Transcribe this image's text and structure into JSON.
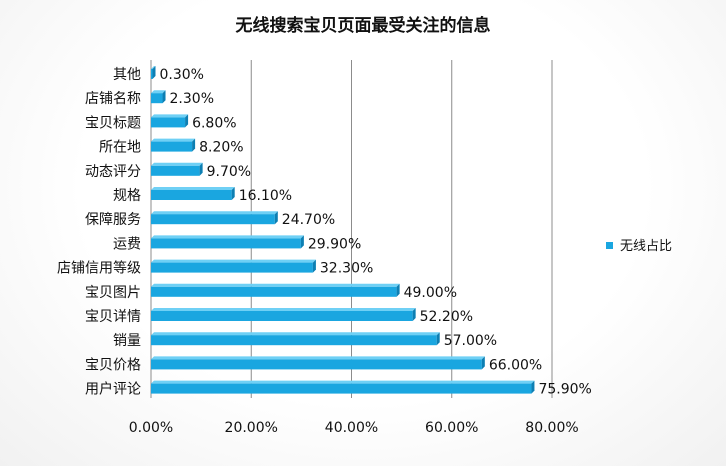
{
  "chart_data": {
    "type": "bar",
    "orientation": "horizontal",
    "title": "无线搜索宝贝页面最受关注的信息",
    "categories": [
      "其他",
      "店铺名称",
      "宝贝标题",
      "所在地",
      "动态评分",
      "规格",
      "保障服务",
      "运费",
      "店铺信用等级",
      "宝贝图片",
      "宝贝详情",
      "销量",
      "宝贝价格",
      "用户评论"
    ],
    "series": [
      {
        "name": "无线占比",
        "values": [
          0.3,
          2.3,
          6.8,
          8.2,
          9.7,
          16.1,
          24.7,
          29.9,
          32.3,
          49.0,
          52.2,
          57.0,
          66.0,
          75.9
        ],
        "labels": [
          "0.30%",
          "2.30%",
          "6.80%",
          "8.20%",
          "9.70%",
          "16.10%",
          "24.70%",
          "29.90%",
          "32.30%",
          "49.00%",
          "52.20%",
          "57.00%",
          "66.00%",
          "75.90%"
        ]
      }
    ],
    "xlim": [
      0,
      80
    ],
    "xticks": [
      0,
      20,
      40,
      60,
      80
    ],
    "xtick_labels": [
      "0.00%",
      "20.00%",
      "40.00%",
      "60.00%",
      "80.00%"
    ],
    "grid": true,
    "legend_position": "right",
    "colors": {
      "bar": "#1aa6e0",
      "bar_dark": "#0d7fb3",
      "bar_light": "#6fd0f5",
      "grid": "#8c8c8c"
    }
  }
}
